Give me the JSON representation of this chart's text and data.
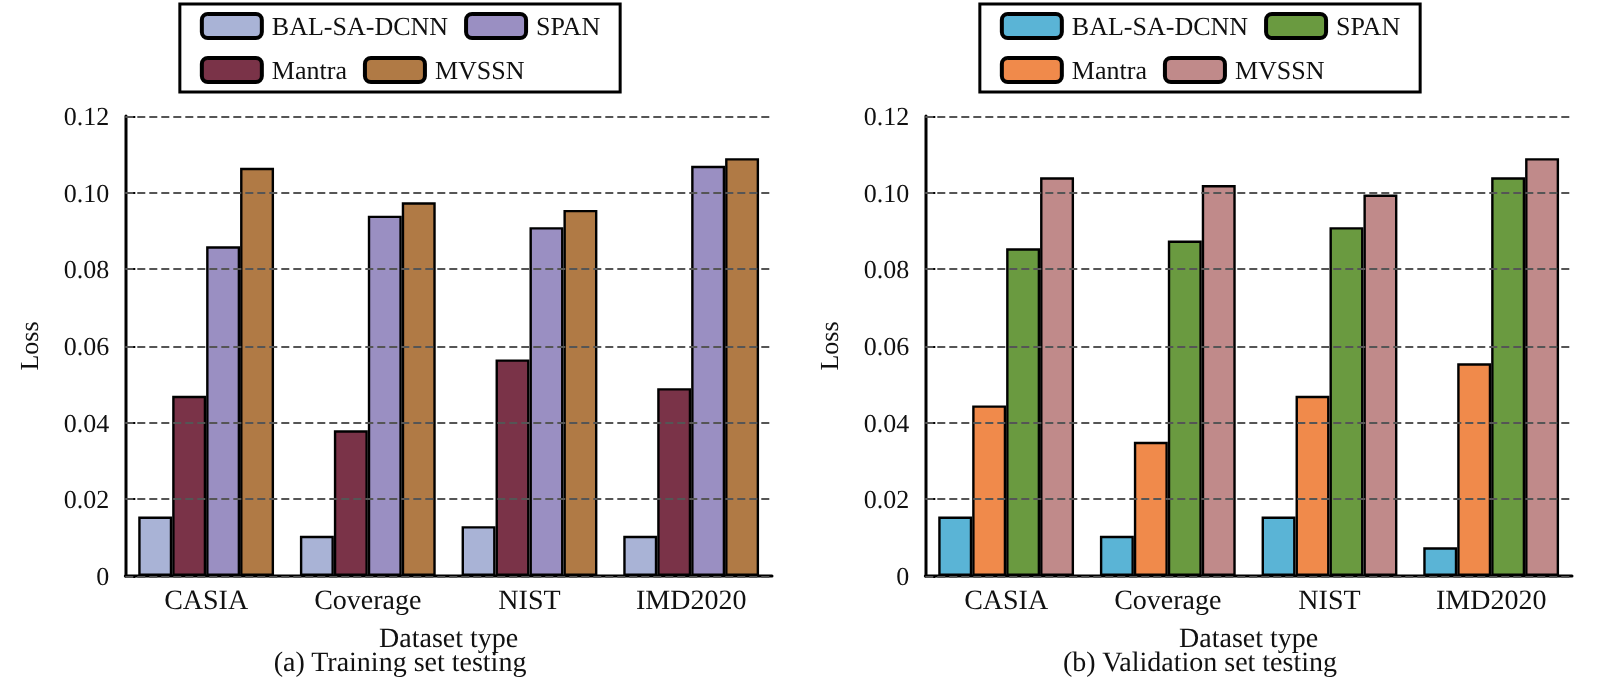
{
  "chart_data": [
    {
      "type": "bar",
      "title": "(a) Training set testing",
      "xlabel": "Dataset type",
      "ylabel": "Loss",
      "categories": [
        "CASIA",
        "Coverage",
        "NIST",
        "IMD2020"
      ],
      "series": [
        {
          "name": "BAL-SA-DCNN",
          "color": "#a9b3d6",
          "values": [
            0.0155,
            0.0105,
            0.013,
            0.0105
          ]
        },
        {
          "name": "Mantra",
          "color": "#7a3348",
          "values": [
            0.047,
            0.038,
            0.0565,
            0.049
          ]
        },
        {
          "name": "SPAN",
          "color": "#9a8fc2",
          "values": [
            0.086,
            0.094,
            0.091,
            0.107
          ]
        },
        {
          "name": "MVSSN",
          "color": "#b07a45",
          "values": [
            0.1065,
            0.0975,
            0.0955,
            0.109
          ]
        }
      ],
      "ylim": [
        0,
        0.12
      ],
      "yticks": [
        0,
        0.02,
        0.04,
        0.06,
        0.08,
        {
          "value": 0.1,
          "label": "0.10"
        },
        0.12
      ],
      "grid": "y",
      "legend": "top"
    },
    {
      "type": "bar",
      "title": "(b) Validation set testing",
      "xlabel": "Dataset type",
      "ylabel": "Loss",
      "categories": [
        "CASIA",
        "Coverage",
        "NIST",
        "IMD2020"
      ],
      "series": [
        {
          "name": "BAL-SA-DCNN",
          "color": "#5ab4d6",
          "values": [
            0.0155,
            0.0105,
            0.0155,
            0.0075
          ]
        },
        {
          "name": "Mantra",
          "color": "#f08a4b",
          "values": [
            0.0445,
            0.035,
            0.047,
            0.0555
          ]
        },
        {
          "name": "SPAN",
          "color": "#6a9a40",
          "values": [
            0.0855,
            0.0875,
            0.091,
            0.104
          ]
        },
        {
          "name": "MVSSN",
          "color": "#c08a8a",
          "values": [
            0.104,
            0.102,
            0.0995,
            0.109
          ]
        }
      ],
      "ylim": [
        0,
        0.12
      ],
      "yticks": [
        0,
        0.02,
        0.04,
        0.06,
        0.08,
        {
          "value": 0.1,
          "label": "0.10"
        },
        0.12
      ],
      "grid": "y",
      "legend": "top"
    }
  ]
}
